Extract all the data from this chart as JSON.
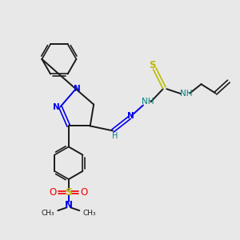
{
  "background_color": "#e8e8e8",
  "bond_color": "#1a1a1a",
  "n_color": "#0000ee",
  "s_color": "#bbbb00",
  "o_color": "#ee0000",
  "nh_color": "#008080",
  "figsize": [
    3.0,
    3.0
  ],
  "dpi": 100,
  "xlim": [
    0,
    10
  ],
  "ylim": [
    0,
    10
  ]
}
